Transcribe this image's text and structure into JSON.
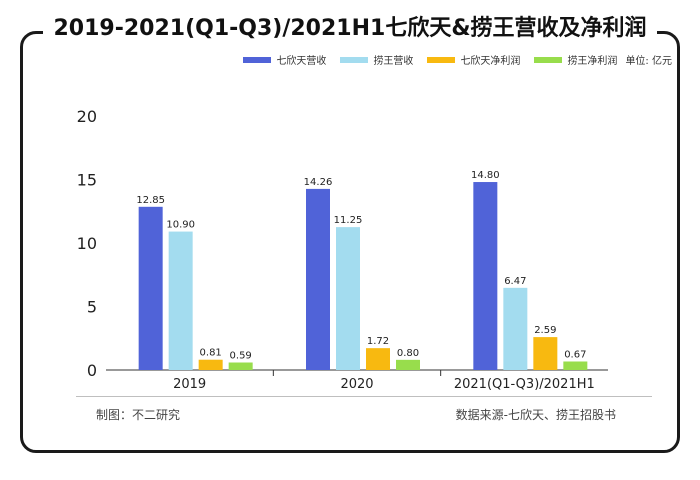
{
  "title": "2019-2021(Q1-Q3)/2021H1七欣天&捞王营收及净利润",
  "unit": "单位: 亿元",
  "footer": {
    "left": "制图：不二研究",
    "right": "数据来源-七欣天、捞王招股书"
  },
  "colors": {
    "qixintian_revenue": "#5063d8",
    "laowang_revenue": "#a3dcef",
    "qixintian_profit": "#f8b910",
    "laowang_profit": "#98dd4c"
  },
  "chart_data": {
    "type": "bar",
    "categories": [
      "2019",
      "2020",
      "2021(Q1-Q3)/2021H1"
    ],
    "series": [
      {
        "name": "七欣天营收",
        "values": [
          12.85,
          14.26,
          14.8
        ],
        "labels": [
          "12.85",
          "14.26",
          "14.80"
        ],
        "color": "#5063d8"
      },
      {
        "name": "捞王营收",
        "values": [
          10.9,
          11.25,
          6.47
        ],
        "labels": [
          "10.90",
          "11.25",
          "6.47"
        ],
        "color": "#a3dcef"
      },
      {
        "name": "七欣天净利润",
        "values": [
          0.81,
          1.72,
          2.59
        ],
        "labels": [
          "0.81",
          "1.72",
          "2.59"
        ],
        "color": "#f8b910"
      },
      {
        "name": "捞王净利润",
        "values": [
          0.59,
          0.8,
          0.67
        ],
        "labels": [
          "0.59",
          "0.80",
          "0.67"
        ],
        "color": "#98dd4c"
      }
    ],
    "ylim": [
      0,
      20
    ],
    "yticks": [
      "0",
      "5",
      "10",
      "15",
      "20"
    ],
    "grid": false,
    "legend_position": "top-right"
  }
}
